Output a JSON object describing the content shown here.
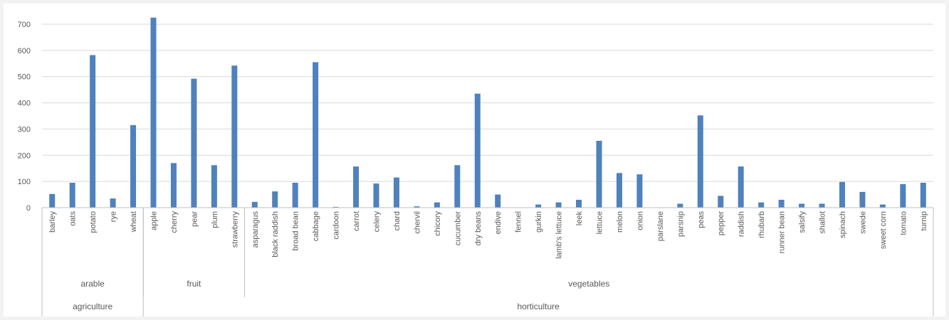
{
  "chart_data": {
    "type": "bar",
    "title": "",
    "xlabel": "",
    "ylabel": "",
    "ylim": [
      0,
      700
    ],
    "yticks": [
      0,
      100,
      200,
      300,
      400,
      500,
      600,
      700
    ],
    "grid": "horizontal",
    "legend": "none",
    "bar_color": "#4f81bd",
    "categories": [
      "barley",
      "oats",
      "potato",
      "rye",
      "wheat",
      "apple",
      "cherry",
      "pear",
      "plum",
      "strawberry",
      "asparagus",
      "black raddish",
      "broad bean",
      "cabbage",
      "cardoon",
      "carrot",
      "celery",
      "chard",
      "chervil",
      "chicory",
      "cucumber",
      "dry beans",
      "endive",
      "fennel",
      "gurkin",
      "lamb's lettuce",
      "leek",
      "lettuce",
      "melon",
      "onion",
      "parslane",
      "parsnip",
      "peas",
      "pepper",
      "raddish",
      "rhubarb",
      "runner bean",
      "salsify",
      "shallot",
      "spinach",
      "swede",
      "sweet corn",
      "tomato",
      "turnip"
    ],
    "values": [
      52,
      95,
      582,
      35,
      315,
      725,
      170,
      492,
      162,
      542,
      22,
      62,
      95,
      555,
      3,
      157,
      92,
      115,
      5,
      20,
      162,
      435,
      50,
      0,
      12,
      20,
      30,
      255,
      132,
      127,
      0,
      15,
      352,
      45,
      157,
      20,
      30,
      15,
      15,
      98,
      60,
      12,
      90,
      95
    ],
    "subgroups": [
      {
        "label": "arable",
        "count": 5
      },
      {
        "label": "fruit",
        "count": 5
      },
      {
        "label": "vegetables",
        "count": 34
      }
    ],
    "groups": [
      {
        "label": "agriculture",
        "count": 5
      },
      {
        "label": "horticulture",
        "count": 39
      }
    ]
  }
}
